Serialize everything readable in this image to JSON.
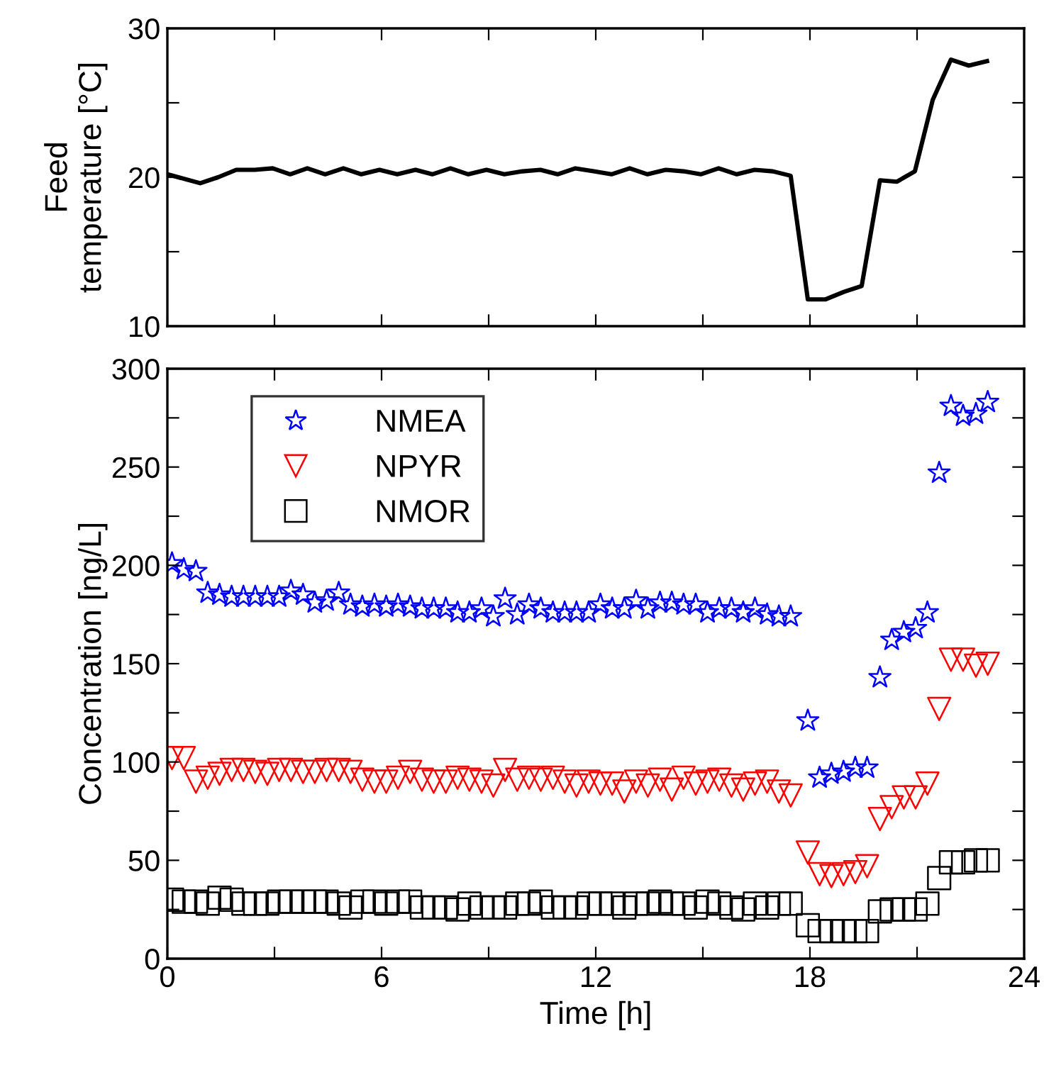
{
  "chart_data": [
    {
      "type": "line",
      "ylabel": "Feed\ntemperature [°C]",
      "color": "#000000",
      "line_style": "solid",
      "marker": "none",
      "x": [
        0,
        0.92,
        1.42,
        1.93,
        2.45,
        2.95,
        3.44,
        3.92,
        4.42,
        4.93,
        5.43,
        5.94,
        6.44,
        6.95,
        7.42,
        7.93,
        8.43,
        8.94,
        9.44,
        9.95,
        10.45,
        10.93,
        11.43,
        11.94,
        12.44,
        12.95,
        13.45,
        13.96,
        14.46,
        14.94,
        15.44,
        15.95,
        16.45,
        16.96,
        17.46,
        17.94,
        18.44,
        18.95,
        19.45,
        19.96,
        20.43,
        20.94,
        21.44,
        21.95,
        22.45,
        22.96
      ],
      "values": [
        20.2,
        19.6,
        20.0,
        20.5,
        20.5,
        20.6,
        20.2,
        20.6,
        20.2,
        20.6,
        20.2,
        20.5,
        20.2,
        20.5,
        20.2,
        20.6,
        20.2,
        20.5,
        20.2,
        20.4,
        20.5,
        20.2,
        20.6,
        20.4,
        20.2,
        20.6,
        20.2,
        20.5,
        20.4,
        20.2,
        20.6,
        20.2,
        20.5,
        20.4,
        20.1,
        11.8,
        11.8,
        12.3,
        12.7,
        19.8,
        19.7,
        20.4,
        25.2,
        27.9,
        27.5,
        27.8
      ],
      "xlim": [
        0,
        24
      ],
      "xticks": [
        {
          "value": 0,
          "label": null
        },
        {
          "value": 3,
          "label": null
        },
        {
          "value": 6,
          "label": null
        },
        {
          "value": 9,
          "label": null
        },
        {
          "value": 12,
          "label": null
        },
        {
          "value": 15,
          "label": null
        },
        {
          "value": 18,
          "label": null
        },
        {
          "value": 21,
          "label": null
        },
        {
          "value": 24,
          "label": null
        }
      ],
      "ylim": [
        10,
        30
      ],
      "yticks": [
        10,
        {
          "value": 15,
          "label": null
        },
        20,
        {
          "value": 25,
          "label": null
        },
        30
      ],
      "tick_labels": "y",
      "grid": false
    },
    {
      "type": "scatter",
      "xlabel": "Time [h]",
      "ylabel": "Concentration [ng/L]",
      "legend": "top left",
      "grid": false,
      "x": [
        0.13,
        0.46,
        0.8,
        1.13,
        1.46,
        1.8,
        2.13,
        2.46,
        2.8,
        3.13,
        3.46,
        3.8,
        4.13,
        4.46,
        4.8,
        5.13,
        5.46,
        5.8,
        6.13,
        6.46,
        6.8,
        7.13,
        7.46,
        7.8,
        8.13,
        8.46,
        8.8,
        9.13,
        9.46,
        9.8,
        10.13,
        10.46,
        10.8,
        11.13,
        11.46,
        11.8,
        12.13,
        12.46,
        12.8,
        13.13,
        13.46,
        13.8,
        14.13,
        14.46,
        14.8,
        15.13,
        15.46,
        15.8,
        16.13,
        16.46,
        16.8,
        17.13,
        17.46,
        17.94,
        18.27,
        18.6,
        18.94,
        19.27,
        19.6,
        19.96,
        20.29,
        20.63,
        20.96,
        21.29,
        21.62,
        21.95,
        22.29,
        22.65,
        22.98
      ],
      "series": [
        {
          "name": "NMEA",
          "color": "#0000ff",
          "marker": "star",
          "values": [
            201,
            198,
            197,
            186,
            185,
            184,
            184,
            184,
            184,
            184,
            187,
            185,
            181,
            182,
            186,
            180,
            179,
            180,
            179,
            180,
            179,
            178,
            178,
            178,
            176,
            176,
            178,
            174,
            183,
            175,
            180,
            178,
            176,
            176,
            176,
            176,
            180,
            178,
            178,
            182,
            178,
            181,
            181,
            180,
            180,
            176,
            178,
            178,
            176,
            178,
            175,
            174,
            174,
            121,
            92,
            94,
            95,
            97,
            97,
            143,
            162,
            166,
            168,
            176,
            247,
            281,
            276,
            277,
            283
          ]
        },
        {
          "name": "NPYR",
          "color": "#ff0000",
          "marker": "triangle_down",
          "values": [
            102,
            102,
            90,
            92,
            94,
            96,
            96,
            95,
            94,
            96,
            96,
            95,
            95,
            96,
            96,
            95,
            91,
            90,
            90,
            92,
            95,
            91,
            90,
            90,
            92,
            91,
            90,
            88,
            96,
            91,
            92,
            91,
            92,
            90,
            88,
            90,
            89,
            89,
            85,
            90,
            88,
            91,
            86,
            92,
            89,
            90,
            91,
            88,
            86,
            89,
            90,
            85,
            83,
            54,
            43,
            42,
            43,
            44,
            47,
            71,
            77,
            82,
            82,
            89,
            127,
            152,
            152,
            149,
            150
          ]
        },
        {
          "name": "NMOR",
          "color": "#000000",
          "marker": "square",
          "values": [
            30,
            29,
            29,
            28,
            31,
            30,
            28,
            28,
            28,
            29,
            29,
            29,
            29,
            29,
            28,
            26,
            29,
            29,
            28,
            29,
            29,
            26,
            26,
            26,
            25,
            28,
            26,
            26,
            26,
            28,
            28,
            29,
            26,
            26,
            26,
            28,
            28,
            28,
            26,
            28,
            28,
            29,
            28,
            28,
            26,
            29,
            28,
            26,
            25,
            28,
            26,
            28,
            28,
            17,
            14,
            14,
            14,
            14,
            14,
            24,
            25,
            25,
            25,
            28,
            41,
            49,
            49,
            50,
            50
          ]
        }
      ],
      "xlim": [
        0,
        24
      ],
      "xticks": [
        0,
        {
          "value": 3,
          "label": null
        },
        6,
        {
          "value": 9,
          "label": null
        },
        12,
        {
          "value": 15,
          "label": null
        },
        18,
        {
          "value": 21,
          "label": null
        },
        24
      ],
      "ylim": [
        0,
        300
      ],
      "yticks": [
        0,
        {
          "value": 25,
          "label": null
        },
        50,
        {
          "value": 75,
          "label": null
        },
        100,
        {
          "value": 125,
          "label": null
        },
        150,
        {
          "value": 175,
          "label": null
        },
        200,
        {
          "value": 225,
          "label": null
        },
        250,
        {
          "value": 275,
          "label": null
        },
        300
      ]
    }
  ]
}
